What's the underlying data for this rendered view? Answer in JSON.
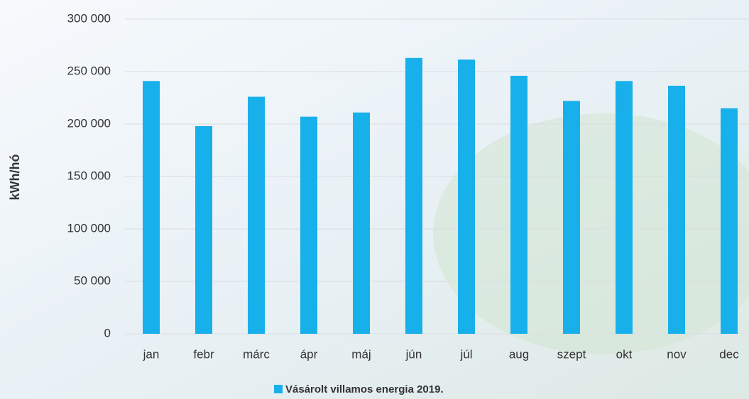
{
  "chart_data": {
    "type": "bar",
    "y_label": "kWh/hó",
    "categories": [
      "jan",
      "febr",
      "márc",
      "ápr",
      "máj",
      "jún",
      "júl",
      "aug",
      "szept",
      "okt",
      "nov",
      "dec"
    ],
    "series": [
      {
        "name": "Vásárolt villamos energia 2019.",
        "color": "#17b0ea",
        "values": [
          241000,
          198000,
          226000,
          207000,
          211000,
          263000,
          261500,
          246000,
          222000,
          241000,
          236500,
          215000
        ]
      }
    ],
    "ylim": [
      0,
      300000
    ],
    "yticks": [
      0,
      {
        "value": 50000,
        "label": "50 000"
      },
      {
        "value": 100000,
        "label": "100 000"
      },
      {
        "value": 150000,
        "label": "150 000"
      },
      {
        "value": 200000,
        "label": "200 000"
      },
      {
        "value": 250000,
        "label": "250 000"
      },
      {
        "value": 300000,
        "label": "300 000"
      }
    ],
    "grid": true,
    "legend": "bottom"
  }
}
